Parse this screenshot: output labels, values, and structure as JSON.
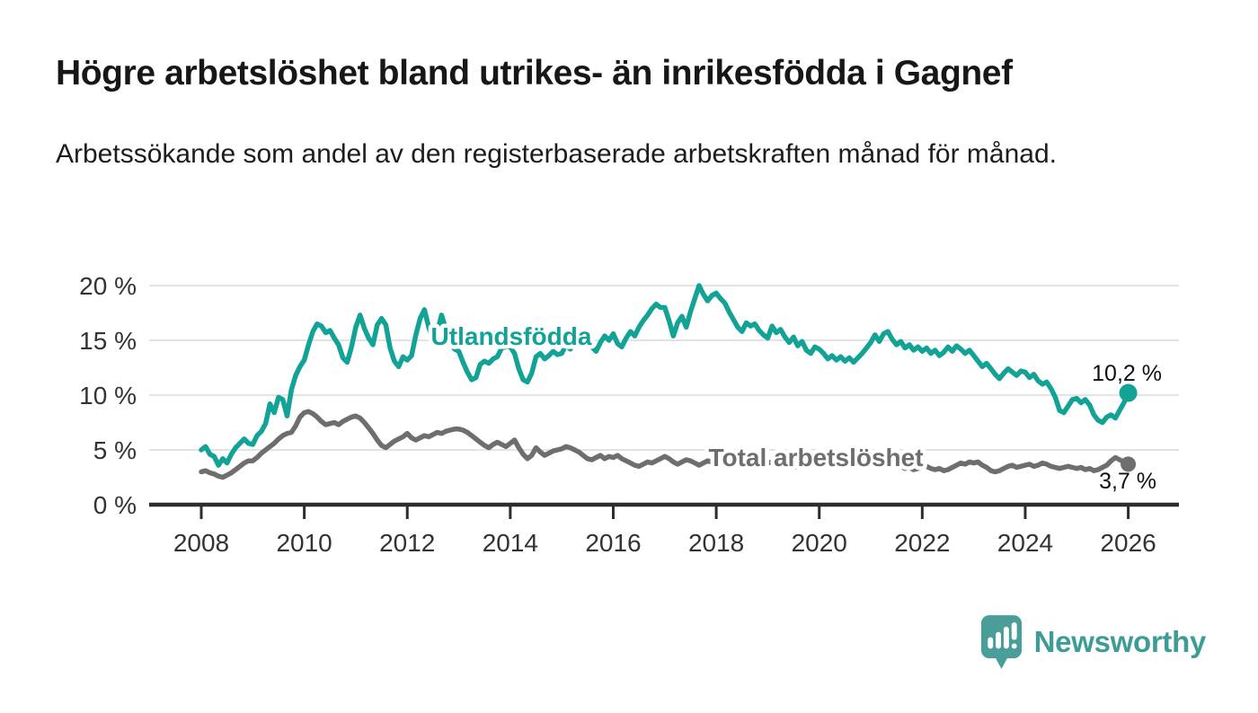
{
  "header": {
    "title": "Högre arbetslöshet bland utrikes- än inrikesfödda i Gagnef",
    "subtitle": "Arbetssökande som andel av den registerbaserade arbetskraften månad för månad."
  },
  "chart_data": {
    "type": "line",
    "title": "Högre arbetslöshet bland utrikes- än inrikesfödda i Gagnef",
    "xlabel": "",
    "ylabel": "Arbetssökande som andel av den registerbaserade arbetskraften",
    "x_unit": "monthly points from January 2008 to January 2026",
    "x_start_year": 2008,
    "points_per_year": 12,
    "x_ticks": [
      2008,
      2010,
      2012,
      2014,
      2016,
      2018,
      2020,
      2022,
      2024,
      2026
    ],
    "y_tick_values": [
      0,
      5,
      10,
      15,
      20
    ],
    "y_tick_labels": [
      "0 %",
      "5 %",
      "10 %",
      "15 %",
      "20 %"
    ],
    "ylim": [
      0,
      21
    ],
    "grid": true,
    "legend_position": "inline-labels",
    "series": [
      {
        "name": "Total arbetslöshet",
        "color": "#6E6E6E",
        "end_label": "3,7 %",
        "end_value": 3.7,
        "values": [
          3.0,
          3.1,
          2.9,
          2.8,
          2.6,
          2.5,
          2.7,
          2.9,
          3.2,
          3.5,
          3.8,
          4.0,
          4.0,
          4.3,
          4.7,
          5.0,
          5.3,
          5.6,
          6.0,
          6.3,
          6.5,
          6.6,
          7.2,
          8.0,
          8.4,
          8.5,
          8.3,
          8.0,
          7.6,
          7.3,
          7.4,
          7.5,
          7.3,
          7.6,
          7.8,
          8.0,
          8.1,
          7.9,
          7.5,
          7.0,
          6.5,
          5.9,
          5.4,
          5.2,
          5.5,
          5.8,
          6.0,
          6.2,
          6.5,
          6.1,
          5.9,
          6.1,
          6.3,
          6.2,
          6.4,
          6.6,
          6.5,
          6.7,
          6.8,
          6.9,
          6.9,
          6.8,
          6.6,
          6.3,
          6.0,
          5.7,
          5.4,
          5.2,
          5.5,
          5.7,
          5.5,
          5.3,
          5.6,
          5.9,
          5.2,
          4.6,
          4.2,
          4.5,
          5.2,
          4.8,
          4.5,
          4.7,
          4.9,
          5.0,
          5.1,
          5.3,
          5.2,
          5.0,
          4.8,
          4.5,
          4.2,
          4.1,
          4.3,
          4.5,
          4.2,
          4.4,
          4.3,
          4.5,
          4.2,
          4.0,
          3.8,
          3.6,
          3.5,
          3.7,
          3.9,
          3.8,
          4.0,
          4.2,
          4.4,
          4.2,
          3.9,
          3.7,
          3.9,
          4.1,
          4.0,
          3.8,
          3.6,
          3.8,
          4.0,
          3.9,
          4.0,
          4.1,
          3.9,
          3.7,
          3.8,
          3.6,
          3.5,
          3.7,
          3.9,
          3.8,
          4.0,
          3.9,
          3.8,
          3.9,
          3.7,
          3.6,
          3.5,
          3.6,
          3.4,
          3.5,
          3.7,
          3.6,
          3.8,
          3.9,
          4.0,
          4.2,
          4.4,
          4.6,
          4.5,
          4.3,
          4.4,
          4.2,
          4.0,
          3.9,
          3.8,
          3.7,
          3.8,
          3.9,
          3.7,
          3.6,
          3.7,
          3.5,
          3.4,
          3.5,
          3.3,
          3.4,
          3.2,
          3.3,
          3.4,
          3.5,
          3.3,
          3.2,
          3.3,
          3.1,
          3.2,
          3.4,
          3.6,
          3.8,
          3.7,
          3.9,
          3.8,
          3.9,
          3.6,
          3.4,
          3.1,
          3.0,
          3.1,
          3.3,
          3.5,
          3.6,
          3.4,
          3.5,
          3.6,
          3.7,
          3.5,
          3.6,
          3.8,
          3.7,
          3.5,
          3.4,
          3.3,
          3.4,
          3.5,
          3.4,
          3.3,
          3.4,
          3.2,
          3.3,
          3.1,
          3.2,
          3.4,
          3.6,
          4.0,
          4.3,
          4.1,
          3.9,
          3.7
        ]
      },
      {
        "name": "Utlandsfödda",
        "color": "#12A296",
        "end_label": "10,2 %",
        "end_value": 10.2,
        "values": [
          5.0,
          5.3,
          4.6,
          4.4,
          3.6,
          4.2,
          3.8,
          4.6,
          5.2,
          5.6,
          6.0,
          5.6,
          5.5,
          6.3,
          6.7,
          7.4,
          9.2,
          8.4,
          9.8,
          9.6,
          8.1,
          10.5,
          11.8,
          12.6,
          13.2,
          14.6,
          15.8,
          16.5,
          16.3,
          15.7,
          15.9,
          15.2,
          14.6,
          13.4,
          13.0,
          14.4,
          16.2,
          17.3,
          16.1,
          15.2,
          14.6,
          16.4,
          17.0,
          16.4,
          14.3,
          13.1,
          12.6,
          13.5,
          13.2,
          13.6,
          15.5,
          17.0,
          17.8,
          16.2,
          15.1,
          15.8,
          17.3,
          16.0,
          14.8,
          14.2,
          14.0,
          13.0,
          12.1,
          11.4,
          11.6,
          12.8,
          13.1,
          12.9,
          13.3,
          13.5,
          14.3,
          14.4,
          14.4,
          13.8,
          12.4,
          11.4,
          11.2,
          12.0,
          13.5,
          13.8,
          13.3,
          13.6,
          14.0,
          13.7,
          13.8,
          14.6,
          14.2,
          14.9,
          15.3,
          14.7,
          15.2,
          14.4,
          14.0,
          14.8,
          15.4,
          15.0,
          15.6,
          14.7,
          14.4,
          15.2,
          15.8,
          15.4,
          16.2,
          16.8,
          17.3,
          17.9,
          18.3,
          18.0,
          18.0,
          16.8,
          15.4,
          16.6,
          17.2,
          16.2,
          17.6,
          18.8,
          20.0,
          19.2,
          18.6,
          19.1,
          19.3,
          18.8,
          18.4,
          17.6,
          16.9,
          16.2,
          15.8,
          16.6,
          16.3,
          16.5,
          15.9,
          15.5,
          15.2,
          16.3,
          15.7,
          16.0,
          15.3,
          14.8,
          15.3,
          14.5,
          14.9,
          14.1,
          13.8,
          14.4,
          14.2,
          13.8,
          13.3,
          13.6,
          13.2,
          13.5,
          13.1,
          13.4,
          13.0,
          13.4,
          13.8,
          14.3,
          14.8,
          15.5,
          14.9,
          15.6,
          15.8,
          15.1,
          14.6,
          14.9,
          14.3,
          14.6,
          14.1,
          14.4,
          14.0,
          14.3,
          13.8,
          14.1,
          13.6,
          13.9,
          14.4,
          14.0,
          14.5,
          14.2,
          13.8,
          14.1,
          13.6,
          13.1,
          12.6,
          12.9,
          12.4,
          11.9,
          11.5,
          12.0,
          12.4,
          12.1,
          11.8,
          12.2,
          12.1,
          11.6,
          11.9,
          11.3,
          11.0,
          11.2,
          10.6,
          9.8,
          8.6,
          8.4,
          9.0,
          9.6,
          9.7,
          9.3,
          9.6,
          9.1,
          8.2,
          7.7,
          7.5,
          8.0,
          8.2,
          7.9,
          8.6,
          9.3,
          10.2
        ]
      }
    ]
  },
  "footer": {
    "brand": "Newsworthy"
  },
  "colors": {
    "accent_teal": "#12A296",
    "series_gray": "#6E6E6E",
    "logo_teal": "#4A9E99",
    "grid": "#DBDBDB",
    "axis": "#2D2D2D"
  }
}
